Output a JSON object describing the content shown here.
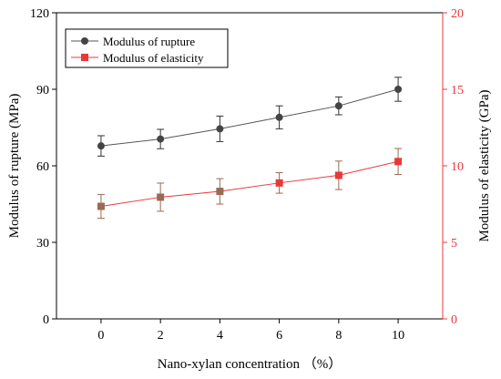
{
  "chart_data": {
    "type": "line",
    "x": [
      0,
      2,
      4,
      6,
      8,
      10
    ],
    "xticks": [
      0,
      2,
      4,
      6,
      8,
      10
    ],
    "xlim": [
      -1.5,
      11.5
    ],
    "xlabel": "Nano-xylan concentration （%）",
    "ylabel_left": "Modulus of rupture (MPa)",
    "ylabel_right": "Modulus of elasticity (GPa)",
    "ylim_left": [
      0,
      120
    ],
    "ylim_right": [
      0,
      20
    ],
    "yticks_left": [
      0,
      30,
      60,
      90,
      120
    ],
    "yticks_right": [
      0,
      5,
      10,
      15,
      20
    ],
    "right_axis_color": "#e8383b",
    "legend_position": "top-left",
    "series": [
      {
        "name": "Modulus of rupture",
        "axis": "left",
        "color": "#555555",
        "marker": "circle",
        "values": [
          67.8,
          70.5,
          74.5,
          79.0,
          83.5,
          90.0
        ],
        "errors": [
          4.0,
          3.8,
          5.0,
          4.5,
          3.5,
          4.7
        ]
      },
      {
        "name": "Modulus of elasticity",
        "axis": "right",
        "color": "#e8383b",
        "marker": "square",
        "values": [
          7.35,
          7.95,
          8.33,
          8.88,
          9.38,
          10.28
        ],
        "errors": [
          0.78,
          0.92,
          0.83,
          0.67,
          0.93,
          0.85
        ]
      }
    ]
  }
}
